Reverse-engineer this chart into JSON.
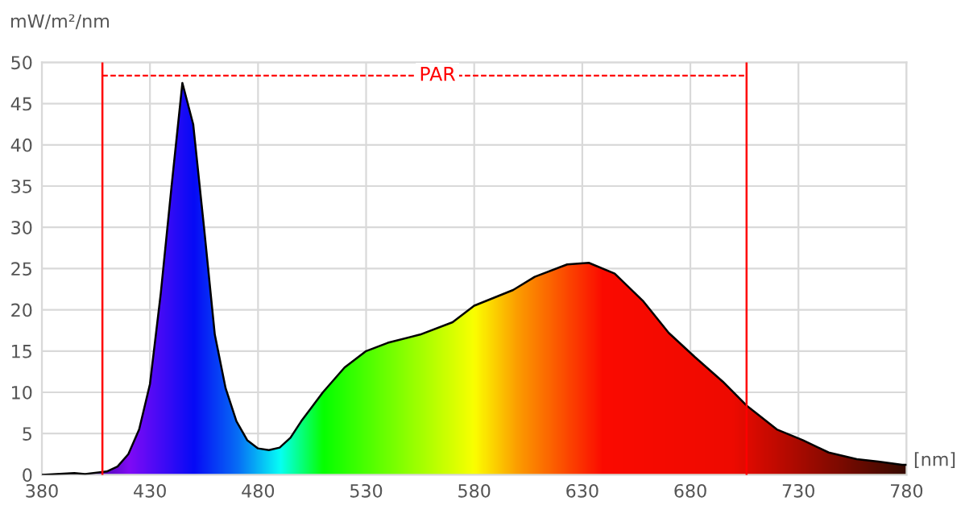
{
  "chart_data": {
    "type": "area",
    "ylabel": "mW/m²/nm",
    "xlabel": "[nm]",
    "xlim": [
      380,
      780
    ],
    "xticks": [
      380,
      430,
      480,
      530,
      580,
      630,
      680,
      730,
      780
    ],
    "ylim": [
      0,
      50
    ],
    "yticks": [
      0,
      5,
      10,
      15,
      20,
      25,
      30,
      35,
      40,
      45,
      50
    ],
    "grid": true,
    "series": [
      {
        "color": "#000000",
        "x": [
          380,
          395,
          400,
          410,
          415,
          420,
          425,
          430,
          435,
          440,
          445,
          450,
          455,
          460,
          465,
          470,
          475,
          480,
          485,
          490,
          495,
          500,
          510,
          520,
          530,
          540,
          555,
          570,
          580,
          598,
          608,
          623,
          633,
          645,
          658,
          670,
          682,
          695,
          706,
          720,
          732,
          744,
          757,
          767,
          778,
          780
        ],
        "values": [
          0,
          0.2,
          0.1,
          0.4,
          1.0,
          2.5,
          5.5,
          11,
          22,
          35,
          47.5,
          42.5,
          30,
          17,
          10.5,
          6.5,
          4.2,
          3.2,
          3.0,
          3.3,
          4.5,
          6.5,
          10,
          13,
          15,
          16,
          17,
          18.5,
          20.5,
          22.4,
          24,
          25.5,
          25.7,
          24.4,
          21.1,
          17.2,
          14.3,
          11.3,
          8.4,
          5.5,
          4.2,
          2.7,
          1.9,
          1.6,
          1.2,
          1.2
        ]
      },
      {
        "type": "line",
        "name": "PAR",
        "color": "#ff0000",
        "line_style": "dashed",
        "x": [
          408,
          706
        ],
        "values": [
          48.4,
          48.4
        ]
      }
    ],
    "ref_lines": [
      {
        "axis": "x",
        "value": 408,
        "color": "#ff0000"
      },
      {
        "axis": "x",
        "value": 706,
        "color": "#ff0000"
      }
    ]
  }
}
